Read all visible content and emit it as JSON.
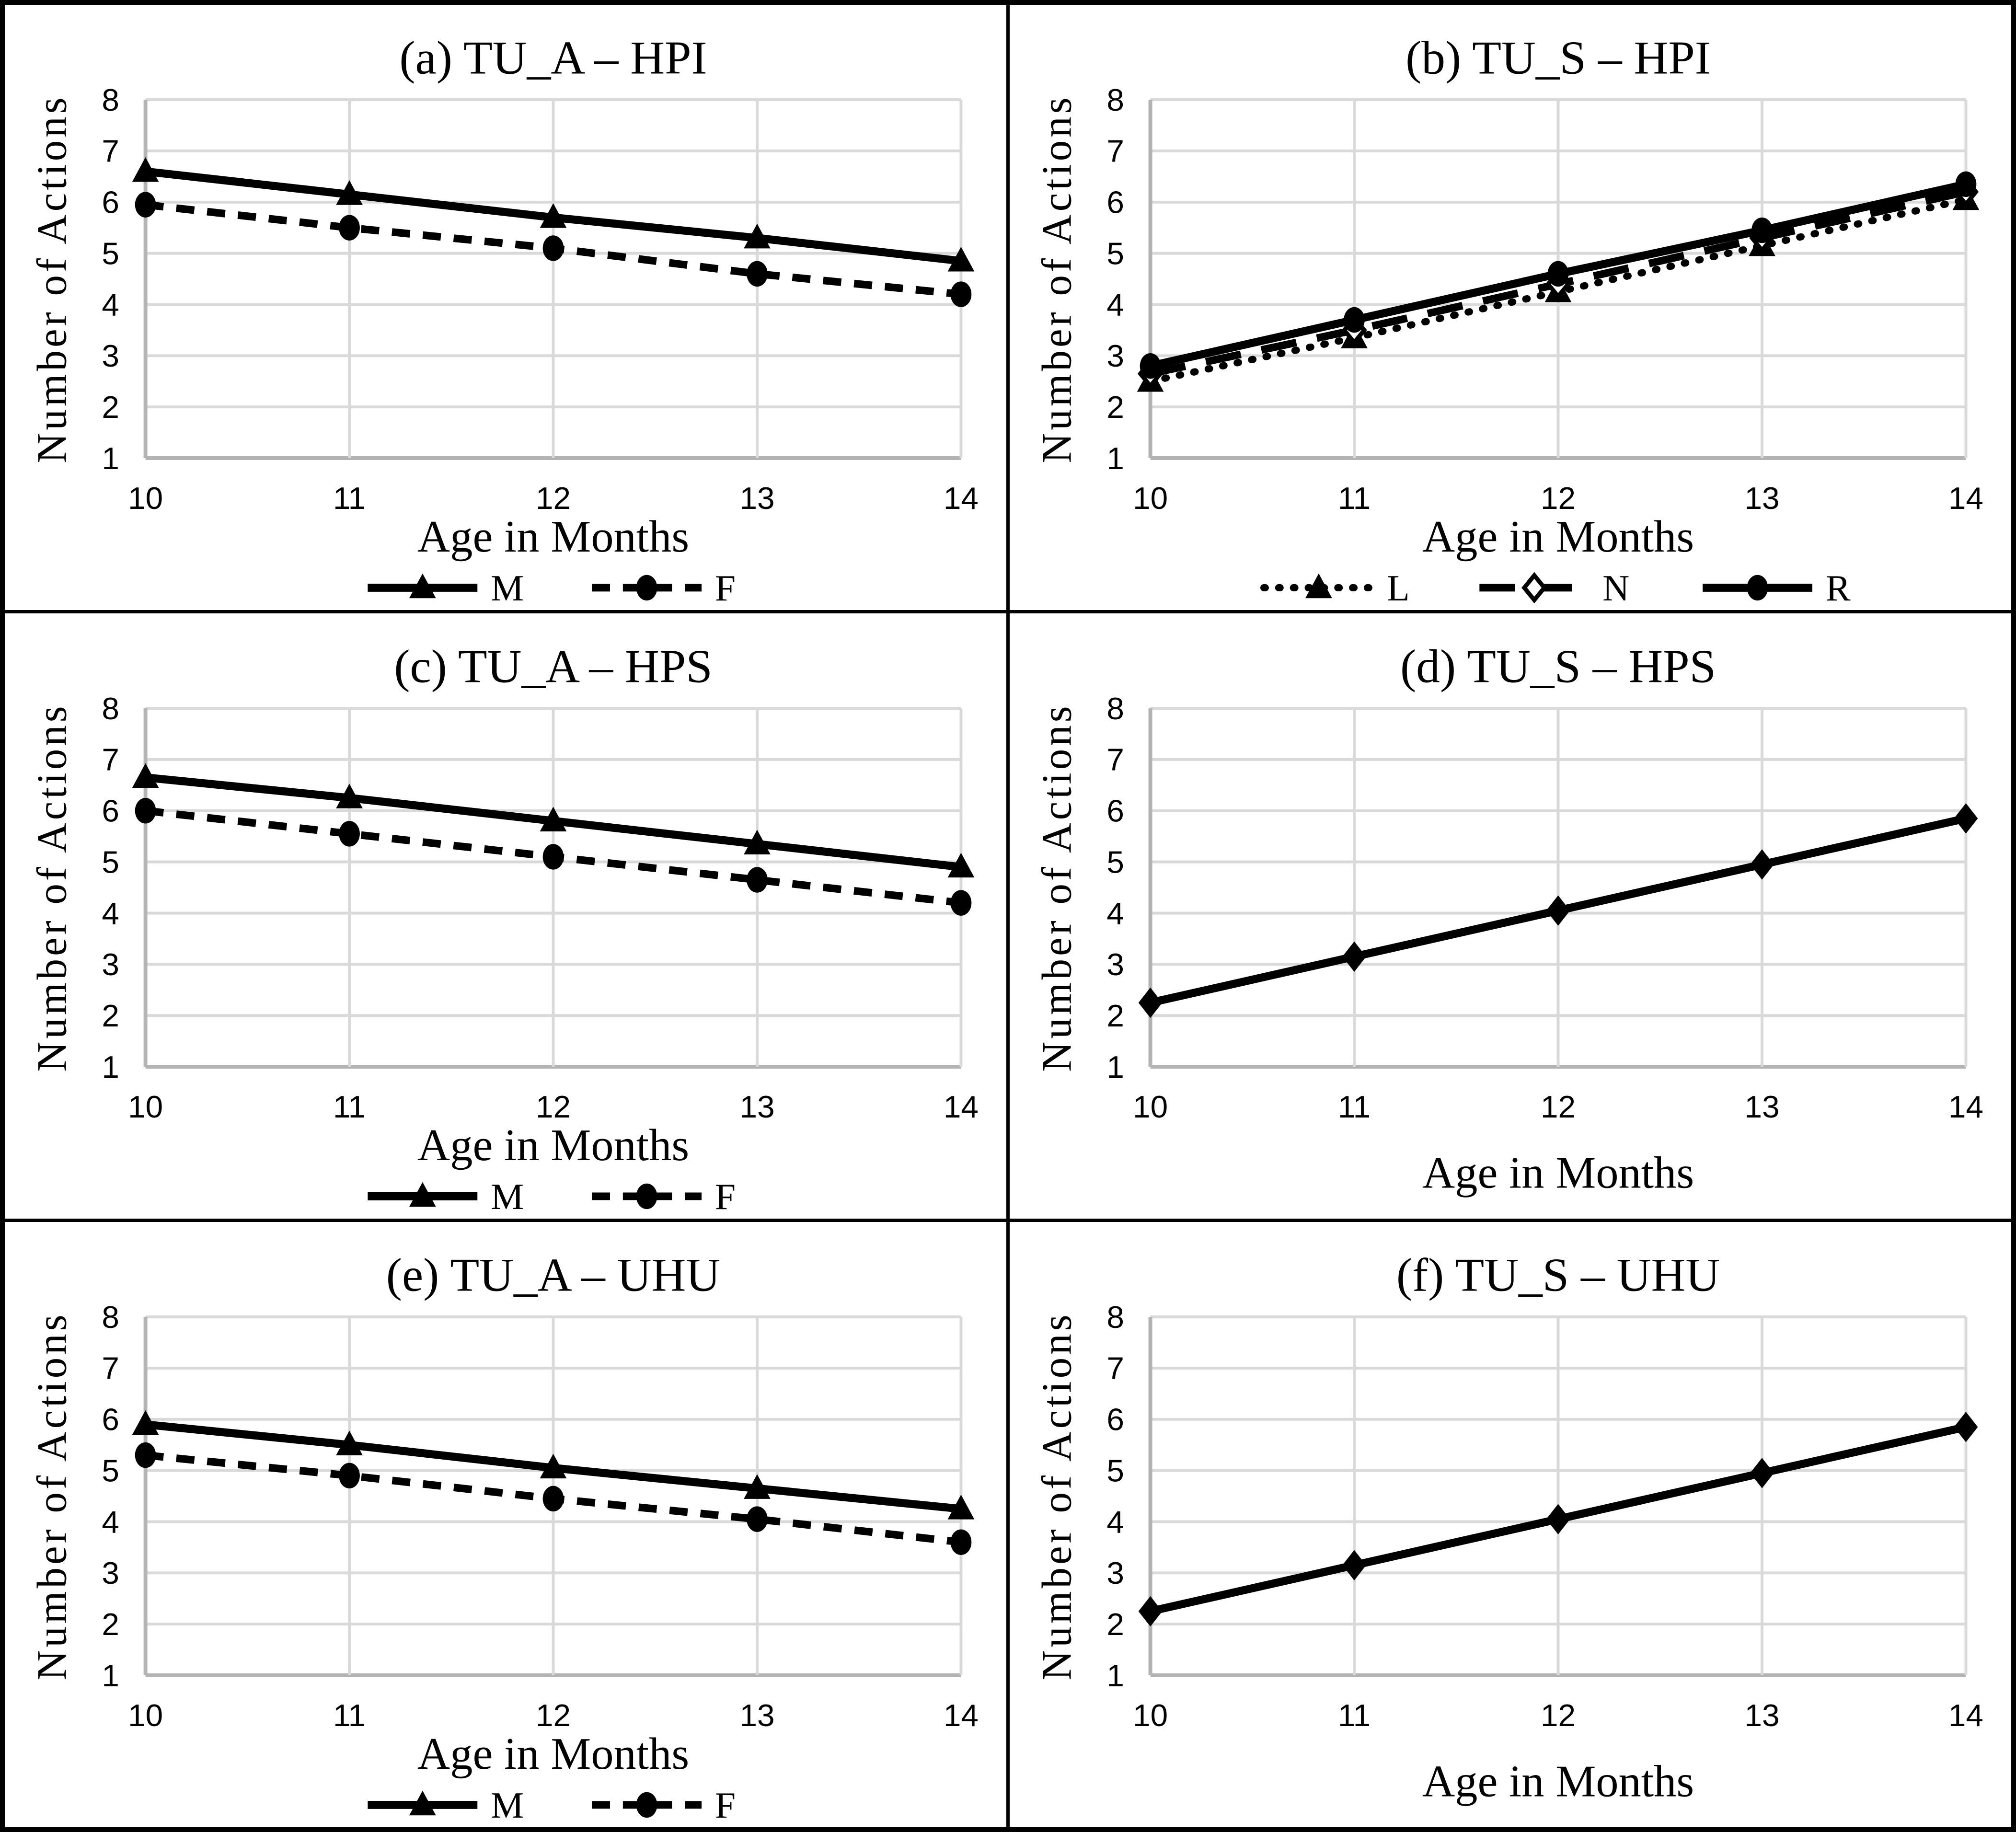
{
  "styles": {
    "background": "#ffffff",
    "frame_color": "#000000",
    "grid_color": "#d9d9d9",
    "axis_color": "#b3b3b3",
    "series_color": "#000000",
    "text_color": "#000000"
  },
  "chart_data": [
    {
      "id": "a",
      "type": "line",
      "title": "(a) TU_A – HPI",
      "xlabel": "Age in Months",
      "ylabel": "Number of Actions",
      "x": [
        10,
        11,
        12,
        13,
        14
      ],
      "yticks": [
        1,
        2,
        3,
        4,
        5,
        6,
        7,
        8
      ],
      "xlim": [
        10,
        14
      ],
      "ylim": [
        1,
        8
      ],
      "grid": true,
      "legend": true,
      "legend_position": "bottom",
      "series": [
        {
          "name": "M",
          "marker": "triangle",
          "line": "solid",
          "values": [
            6.6,
            6.15,
            5.7,
            5.3,
            4.85
          ]
        },
        {
          "name": "F",
          "marker": "circle",
          "line": "dash",
          "values": [
            5.95,
            5.5,
            5.1,
            4.6,
            4.2
          ]
        }
      ]
    },
    {
      "id": "b",
      "type": "line",
      "title": "(b) TU_S – HPI",
      "xlabel": "Age in Months",
      "ylabel": "Number of Actions",
      "x": [
        10,
        11,
        12,
        13,
        14
      ],
      "yticks": [
        1,
        2,
        3,
        4,
        5,
        6,
        7,
        8
      ],
      "xlim": [
        10,
        14
      ],
      "ylim": [
        1,
        8
      ],
      "grid": true,
      "legend": true,
      "legend_position": "bottom",
      "series": [
        {
          "name": "L",
          "marker": "triangle",
          "line": "dot",
          "values": [
            2.5,
            3.35,
            4.25,
            5.15,
            6.05
          ]
        },
        {
          "name": "N",
          "marker": "diamond-open",
          "line": "longdash",
          "values": [
            2.65,
            3.5,
            4.4,
            5.3,
            6.2
          ]
        },
        {
          "name": "R",
          "marker": "circle",
          "line": "solid",
          "values": [
            2.8,
            3.7,
            4.6,
            5.45,
            6.35
          ]
        }
      ]
    },
    {
      "id": "c",
      "type": "line",
      "title": "(c) TU_A – HPS",
      "xlabel": "Age in Months",
      "ylabel": "Number of Actions",
      "x": [
        10,
        11,
        12,
        13,
        14
      ],
      "yticks": [
        1,
        2,
        3,
        4,
        5,
        6,
        7,
        8
      ],
      "xlim": [
        10,
        14
      ],
      "ylim": [
        1,
        8
      ],
      "grid": true,
      "legend": true,
      "legend_position": "bottom",
      "series": [
        {
          "name": "M",
          "marker": "triangle",
          "line": "solid",
          "values": [
            6.65,
            6.25,
            5.8,
            5.35,
            4.9
          ]
        },
        {
          "name": "F",
          "marker": "circle",
          "line": "dash",
          "values": [
            6.0,
            5.55,
            5.1,
            4.65,
            4.2
          ]
        }
      ]
    },
    {
      "id": "d",
      "type": "line",
      "title": "(d) TU_S – HPS",
      "xlabel": "Age in Months",
      "ylabel": "Number of Actions",
      "x": [
        10,
        11,
        12,
        13,
        14
      ],
      "yticks": [
        1,
        2,
        3,
        4,
        5,
        6,
        7,
        8
      ],
      "xlim": [
        10,
        14
      ],
      "ylim": [
        1,
        8
      ],
      "grid": true,
      "legend": false,
      "legend_position": "none",
      "series": [
        {
          "name": "",
          "marker": "diamond",
          "line": "solid",
          "values": [
            2.25,
            3.15,
            4.05,
            4.95,
            5.85
          ]
        }
      ]
    },
    {
      "id": "e",
      "type": "line",
      "title": "(e) TU_A – UHU",
      "xlabel": "Age in Months",
      "ylabel": "Number of Actions",
      "x": [
        10,
        11,
        12,
        13,
        14
      ],
      "yticks": [
        1,
        2,
        3,
        4,
        5,
        6,
        7,
        8
      ],
      "xlim": [
        10,
        14
      ],
      "ylim": [
        1,
        8
      ],
      "grid": true,
      "legend": true,
      "legend_position": "bottom",
      "series": [
        {
          "name": "M",
          "marker": "triangle",
          "line": "solid",
          "values": [
            5.9,
            5.5,
            5.05,
            4.65,
            4.25
          ]
        },
        {
          "name": "F",
          "marker": "circle",
          "line": "dash",
          "values": [
            5.3,
            4.9,
            4.45,
            4.05,
            3.6
          ]
        }
      ]
    },
    {
      "id": "f",
      "type": "line",
      "title": "(f) TU_S – UHU",
      "xlabel": "Age in Months",
      "ylabel": "Number of Actions",
      "x": [
        10,
        11,
        12,
        13,
        14
      ],
      "yticks": [
        1,
        2,
        3,
        4,
        5,
        6,
        7,
        8
      ],
      "xlim": [
        10,
        14
      ],
      "ylim": [
        1,
        8
      ],
      "grid": true,
      "legend": false,
      "legend_position": "none",
      "series": [
        {
          "name": "",
          "marker": "diamond",
          "line": "solid",
          "values": [
            2.25,
            3.15,
            4.05,
            4.95,
            5.85
          ]
        }
      ]
    }
  ]
}
